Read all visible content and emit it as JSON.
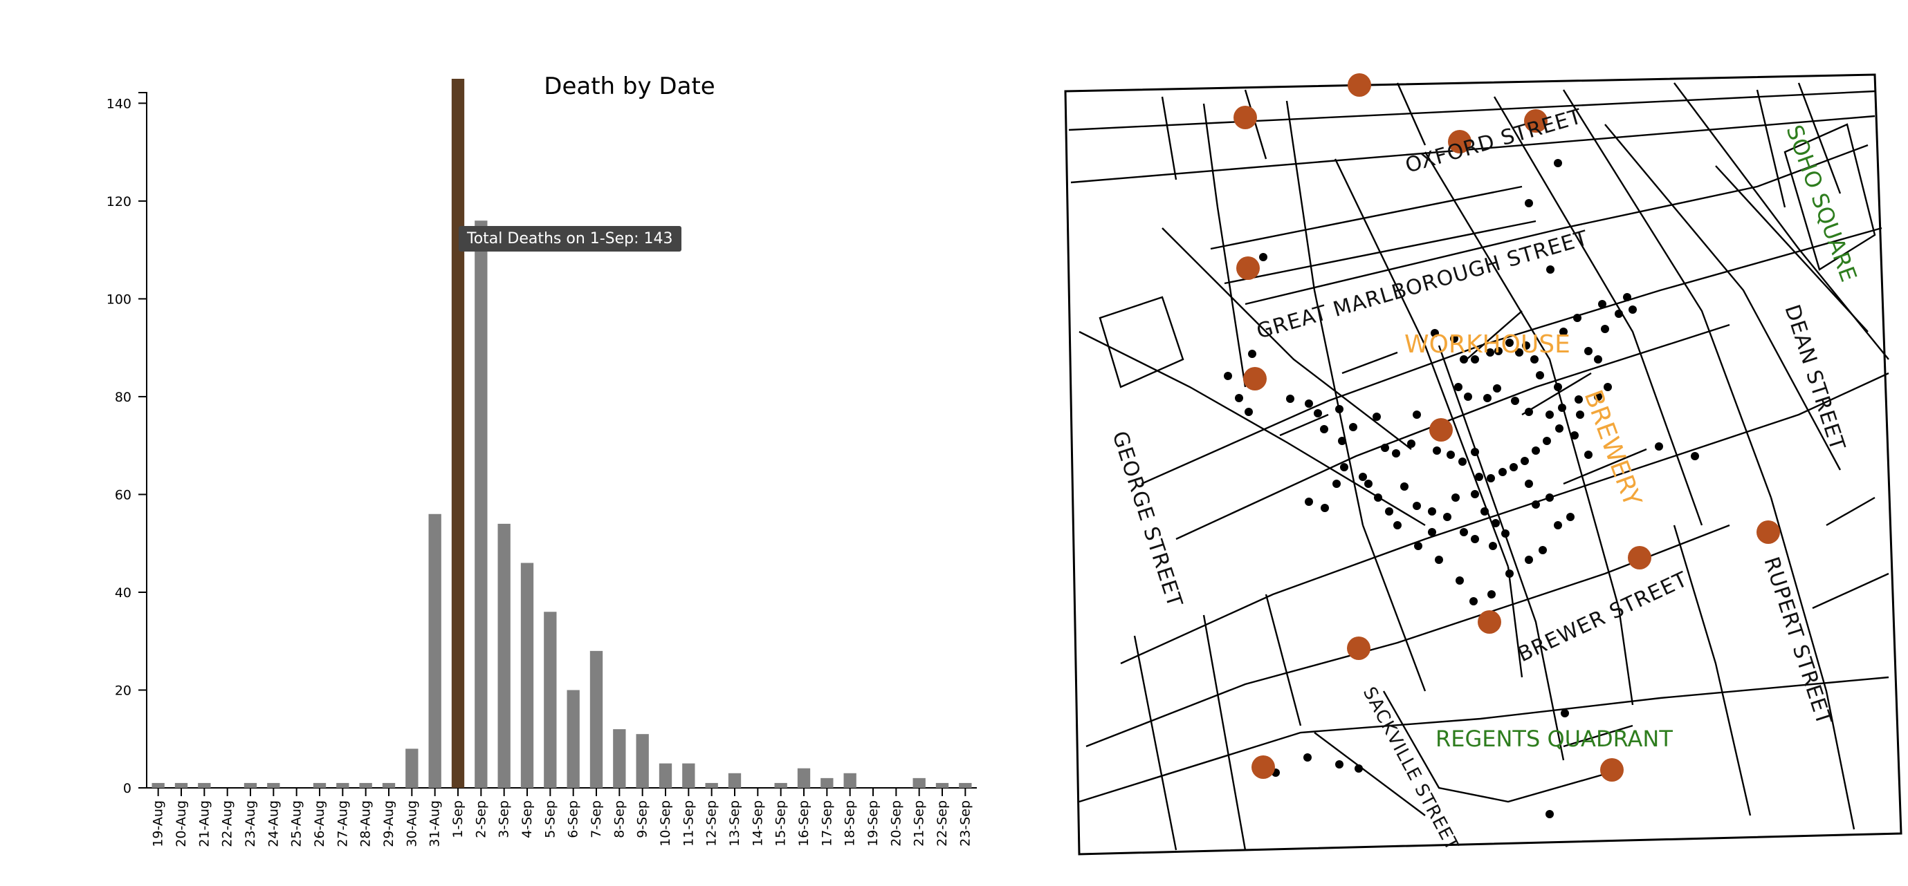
{
  "chart_data": {
    "type": "bar",
    "title": "Death by Date",
    "xlabel": "",
    "ylabel": "",
    "ylim": [
      0,
      145
    ],
    "yticks": [
      0,
      20,
      40,
      60,
      80,
      100,
      120,
      140
    ],
    "categories": [
      "19-Aug",
      "20-Aug",
      "21-Aug",
      "22-Aug",
      "23-Aug",
      "24-Aug",
      "25-Aug",
      "26-Aug",
      "27-Aug",
      "28-Aug",
      "29-Aug",
      "30-Aug",
      "31-Aug",
      "1-Sep",
      "2-Sep",
      "3-Sep",
      "4-Sep",
      "5-Sep",
      "6-Sep",
      "7-Sep",
      "8-Sep",
      "9-Sep",
      "10-Sep",
      "11-Sep",
      "12-Sep",
      "13-Sep",
      "14-Sep",
      "15-Sep",
      "16-Sep",
      "17-Sep",
      "18-Sep",
      "19-Sep",
      "20-Sep",
      "21-Sep",
      "22-Sep",
      "23-Sep"
    ],
    "values": [
      1,
      1,
      1,
      0,
      1,
      1,
      0,
      1,
      1,
      1,
      1,
      8,
      56,
      143,
      116,
      54,
      46,
      36,
      20,
      28,
      12,
      11,
      5,
      5,
      1,
      3,
      0,
      1,
      4,
      2,
      3,
      0,
      0,
      2,
      1,
      1
    ],
    "highlight_index": 13,
    "bar_color": "#808080",
    "highlight_color": "#5c3d22",
    "grid": false
  },
  "tooltip": {
    "text": "Total Deaths on 1-Sep: 143"
  },
  "map": {
    "street_labels": [
      "OXFORD STREET",
      "GREAT MARLBOROUGH STREET",
      "DEAN STREET",
      "GEORGE STREET",
      "BREWER STREET",
      "RUPERT STREET",
      "SACKVILLE STREET"
    ],
    "area_labels": [
      "SOHO SQUARE",
      "REGENTS QUADRANT"
    ],
    "building_labels": [
      "WORKHOUSE",
      "BREWERY"
    ],
    "pump_color": "#b5501f",
    "death_color": "#000000",
    "area_label_color": "#2e7d1e",
    "building_label_color": "#f3a63a"
  }
}
